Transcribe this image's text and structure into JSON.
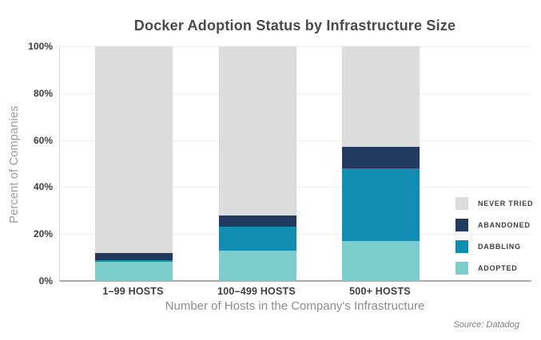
{
  "chart_data": {
    "type": "bar",
    "stacked": true,
    "title": "Docker Adoption Status by Infrastructure Size",
    "xlabel": "Number of Hosts in the Company's Infrastructure",
    "ylabel": "Percent of Companies",
    "source": "Source: Datadog",
    "categories": [
      "1–99 HOSTS",
      "100–499 HOSTS",
      "500+ HOSTS"
    ],
    "series": [
      {
        "name": "ADOPTED",
        "color": "#7CCECC",
        "values": [
          8,
          13,
          17
        ]
      },
      {
        "name": "DABBLING",
        "color": "#108DB1",
        "values": [
          1,
          10,
          31
        ]
      },
      {
        "name": "ABANDONED",
        "color": "#223960",
        "values": [
          3,
          5,
          9
        ]
      },
      {
        "name": "NEVER TRIED",
        "color": "#DCDCDC",
        "values": [
          88,
          72,
          43
        ]
      }
    ],
    "legend_order": [
      "NEVER TRIED",
      "ABANDONED",
      "DABBLING",
      "ADOPTED"
    ],
    "legend_position": "right",
    "grid": true,
    "ylim": [
      0,
      100
    ],
    "yticks": [
      {
        "label": "100%",
        "value": 100
      },
      {
        "label": "80%",
        "value": 80
      },
      {
        "label": "60%",
        "value": 60
      },
      {
        "label": "40%",
        "value": 40
      },
      {
        "label": "20%",
        "value": 20
      },
      {
        "label": "0%",
        "value": 0
      }
    ]
  }
}
